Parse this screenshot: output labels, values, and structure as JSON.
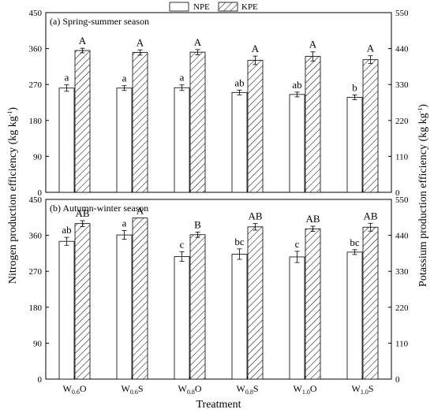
{
  "legend": {
    "npe": "NPE",
    "kpe": "KPE"
  },
  "y_left_label": "Nitrogen production efficiency (kg kg",
  "y_right_label": "Potassium production efficiency (kg kg",
  "y_label_sup": "-1",
  "x_label": "Treatment",
  "categories": [
    {
      "main": "W",
      "sub": "0.6",
      "suffix": "O"
    },
    {
      "main": "W",
      "sub": "0.6",
      "suffix": "S"
    },
    {
      "main": "W",
      "sub": "0.8",
      "suffix": "O"
    },
    {
      "main": "W",
      "sub": "0.8",
      "suffix": "S"
    },
    {
      "main": "W",
      "sub": "1.0",
      "suffix": "O"
    },
    {
      "main": "W",
      "sub": "1.0",
      "suffix": "S"
    }
  ],
  "chart_data": [
    {
      "type": "bar",
      "title": "(a) Spring-summer season",
      "ylim_left": [
        0,
        450
      ],
      "ylim_right": [
        0,
        550
      ],
      "yticks_left": [
        0,
        90,
        180,
        270,
        360,
        450
      ],
      "yticks_right": [
        0,
        110,
        220,
        330,
        440,
        550
      ],
      "series": [
        {
          "name": "NPE",
          "axis": "left",
          "pattern": "open",
          "values": [
            261,
            261,
            262,
            250,
            245,
            238
          ],
          "errors": [
            8,
            6,
            7,
            6,
            6,
            6
          ],
          "labels": [
            "a",
            "a",
            "a",
            "ab",
            "ab",
            "b"
          ]
        },
        {
          "name": "KPE",
          "axis": "right",
          "pattern": "hatched",
          "values": [
            434,
            428,
            429,
            404,
            416,
            406
          ],
          "errors": [
            7,
            8,
            8,
            13,
            14,
            12
          ],
          "labels": [
            "A",
            "A",
            "A",
            "A",
            "A",
            "A"
          ]
        }
      ]
    },
    {
      "type": "bar",
      "title": "(b) Autumn-winter season",
      "ylim_left": [
        0,
        450
      ],
      "ylim_right": [
        0,
        550
      ],
      "yticks_left": [
        0,
        90,
        180,
        270,
        360,
        450
      ],
      "yticks_right": [
        0,
        110,
        220,
        330,
        440,
        550
      ],
      "series": [
        {
          "name": "NPE",
          "axis": "left",
          "pattern": "open",
          "values": [
            345,
            361,
            307,
            313,
            306,
            318
          ],
          "errors": [
            10,
            11,
            12,
            13,
            14,
            6
          ],
          "labels": [
            "ab",
            "a",
            "c",
            "bc",
            "c",
            "bc"
          ]
        },
        {
          "name": "KPE",
          "axis": "right",
          "pattern": "hatched",
          "values": [
            476,
            493,
            442,
            466,
            460,
            465
          ],
          "errors": [
            9,
            0,
            8,
            10,
            8,
            12
          ],
          "labels": [
            "AB",
            "A",
            "B",
            "AB",
            "AB",
            "AB"
          ]
        }
      ]
    }
  ]
}
